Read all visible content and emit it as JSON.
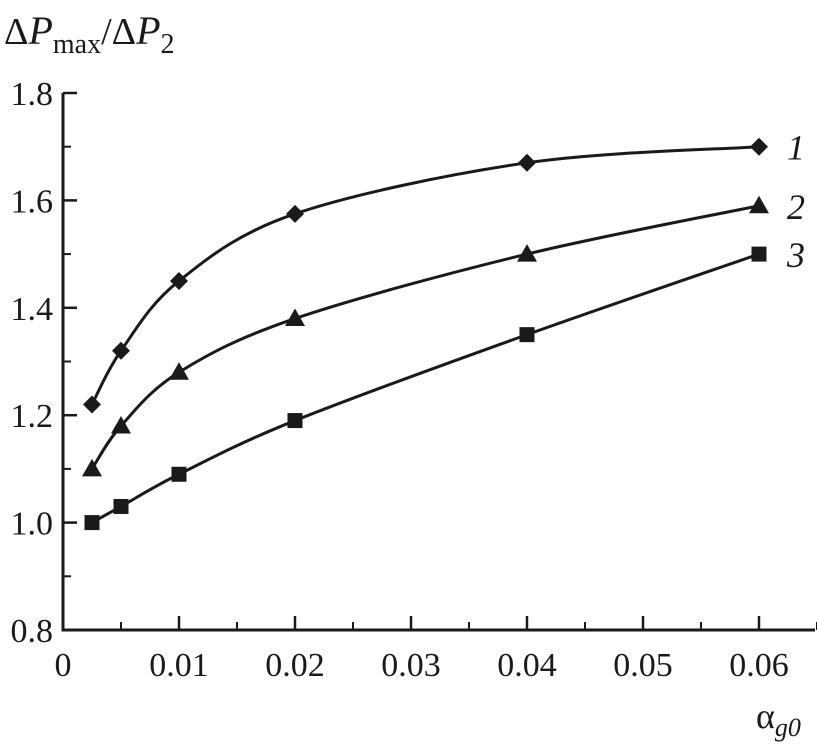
{
  "chart_data": {
    "type": "line",
    "ylabel": {
      "delta1": "Δ",
      "p1": "P",
      "sub1": "max",
      "slash": "/",
      "delta2": "Δ",
      "p2": "P",
      "sub2": "2"
    },
    "xlabel": {
      "alpha": "α",
      "sub": "g0"
    },
    "xlim": [
      0,
      0.065
    ],
    "ylim": [
      0.8,
      1.8
    ],
    "x_ticks": [
      {
        "value": 0,
        "label": "0"
      },
      {
        "value": 0.01,
        "label": "0.01"
      },
      {
        "value": 0.02,
        "label": "0.02"
      },
      {
        "value": 0.03,
        "label": "0.03"
      },
      {
        "value": 0.04,
        "label": "0.04"
      },
      {
        "value": 0.05,
        "label": "0.05"
      },
      {
        "value": 0.06,
        "label": "0.06"
      }
    ],
    "y_ticks": [
      {
        "value": 0.8,
        "label": "0.8"
      },
      {
        "value": 1.0,
        "label": "1.0"
      },
      {
        "value": 1.2,
        "label": "1.2"
      },
      {
        "value": 1.4,
        "label": "1.4"
      },
      {
        "value": 1.6,
        "label": "1.6"
      },
      {
        "value": 1.8,
        "label": "1.8"
      }
    ],
    "grid": false,
    "color": "#1a1a1a",
    "series": [
      {
        "label": "1",
        "marker": "diamond",
        "points": [
          {
            "x": 0.0025,
            "y": 1.22
          },
          {
            "x": 0.005,
            "y": 1.32
          },
          {
            "x": 0.01,
            "y": 1.45
          },
          {
            "x": 0.02,
            "y": 1.575
          },
          {
            "x": 0.04,
            "y": 1.67
          },
          {
            "x": 0.06,
            "y": 1.7
          }
        ]
      },
      {
        "label": "2",
        "marker": "triangle",
        "points": [
          {
            "x": 0.0025,
            "y": 1.1
          },
          {
            "x": 0.005,
            "y": 1.18
          },
          {
            "x": 0.01,
            "y": 1.28
          },
          {
            "x": 0.02,
            "y": 1.38
          },
          {
            "x": 0.04,
            "y": 1.5
          },
          {
            "x": 0.06,
            "y": 1.59
          }
        ]
      },
      {
        "label": "3",
        "marker": "square",
        "points": [
          {
            "x": 0.0025,
            "y": 1.0
          },
          {
            "x": 0.005,
            "y": 1.03
          },
          {
            "x": 0.01,
            "y": 1.09
          },
          {
            "x": 0.02,
            "y": 1.19
          },
          {
            "x": 0.04,
            "y": 1.35
          },
          {
            "x": 0.06,
            "y": 1.5
          }
        ]
      }
    ]
  }
}
